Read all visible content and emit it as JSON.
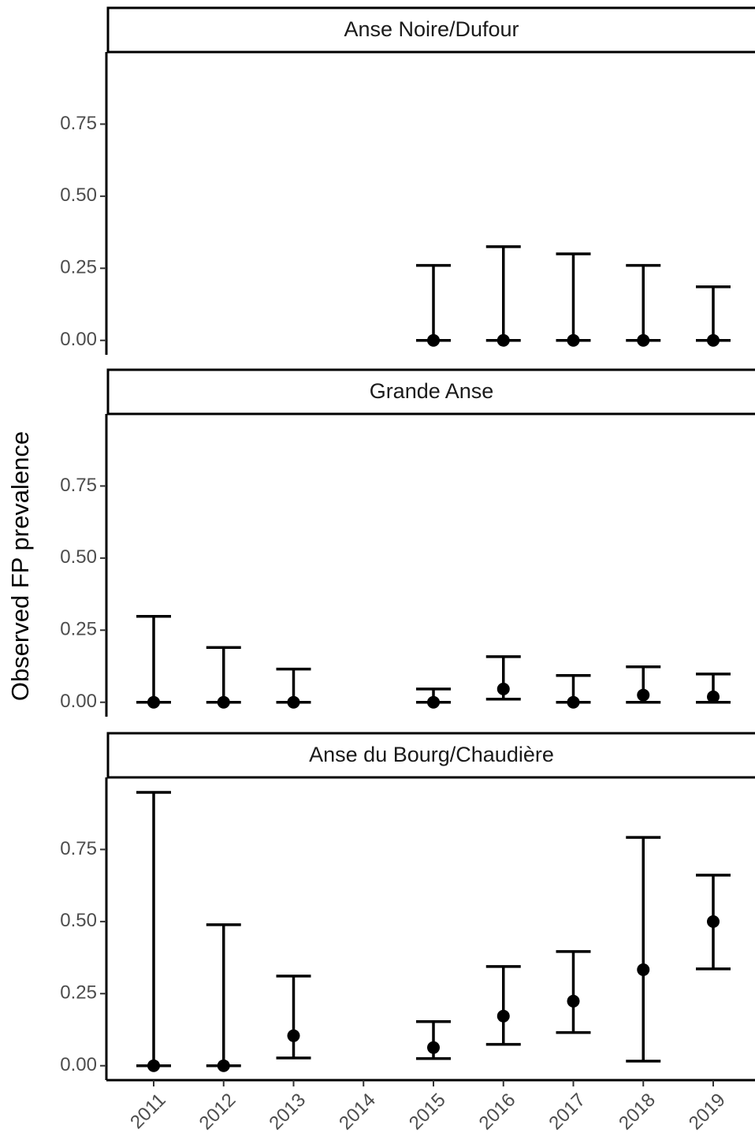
{
  "chart_data": {
    "type": "errorbar",
    "ylabel": "Observed FP prevalence",
    "categories": [
      "2011",
      "2012",
      "2013",
      "2014",
      "2015",
      "2016",
      "2017",
      "2018",
      "2019"
    ],
    "ylim": [
      -0.05,
      1.0
    ],
    "yticks": [
      {
        "value": 0,
        "label": "0.00"
      },
      0.25,
      {
        "value": 0.5,
        "label": "0.50"
      },
      0.75
    ],
    "color": "#000000",
    "panels": [
      {
        "title": "Anse Noire/Dufour",
        "values": [
          null,
          null,
          null,
          null,
          0,
          0,
          0,
          0,
          0
        ],
        "lower": [
          null,
          null,
          null,
          null,
          0,
          0,
          0,
          0,
          0
        ],
        "upper": [
          null,
          null,
          null,
          null,
          0.26,
          0.325,
          0.3,
          0.26,
          0.186
        ]
      },
      {
        "title": "Grande Anse",
        "values": [
          0,
          0,
          0,
          null,
          0,
          0.046,
          0,
          0.025,
          0.019
        ],
        "lower": [
          0,
          0,
          0,
          null,
          0,
          0.011,
          0,
          0,
          0
        ],
        "upper": [
          0.298,
          0.19,
          0.115,
          null,
          0.046,
          0.158,
          0.093,
          0.123,
          0.098
        ]
      },
      {
        "title": "Anse du Bourg/Chaudière",
        "values": [
          0,
          0,
          0.104,
          null,
          0.063,
          0.172,
          0.224,
          0.333,
          0.5
        ],
        "lower": [
          0,
          0,
          0.027,
          null,
          0.025,
          0.074,
          0.115,
          0.016,
          0.336
        ],
        "upper": [
          0.948,
          0.489,
          0.311,
          null,
          0.153,
          0.344,
          0.396,
          0.792,
          0.661
        ]
      }
    ]
  }
}
